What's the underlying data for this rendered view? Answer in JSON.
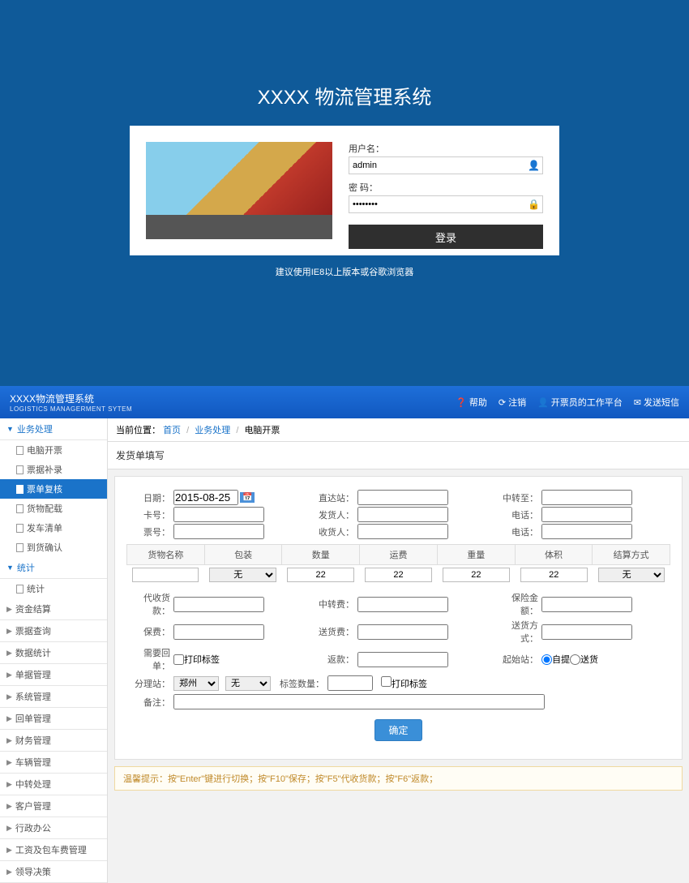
{
  "login": {
    "title": "XXXX 物流管理系统",
    "user_label": "用户名：",
    "user_value": "admin",
    "pwd_label": "密 码：",
    "pwd_value": "••••••••",
    "btn": "登录",
    "tip": "建议使用IE8以上版本或谷歌浏览器"
  },
  "header": {
    "logo": "XXXX物流管理系统",
    "logo_sub": "LOGISTICS MANAGERMENT SYTEM",
    "links": {
      "help": "帮助",
      "logout": "注销",
      "workbench": "开票员的工作平台",
      "sms": "发送短信"
    }
  },
  "sidebar": {
    "groups": [
      {
        "label": "业务处理",
        "open": true,
        "subs": [
          {
            "label": "电脑开票"
          },
          {
            "label": "票据补录"
          },
          {
            "label": "票单复核",
            "active": true
          },
          {
            "label": "货物配载"
          },
          {
            "label": "发车清单"
          },
          {
            "label": "到货确认"
          }
        ]
      },
      {
        "label": "统计",
        "open": true,
        "subs": [
          {
            "label": "统计"
          }
        ]
      },
      {
        "label": "资金结算"
      },
      {
        "label": "票据查询"
      },
      {
        "label": "数据统计"
      },
      {
        "label": "单据管理"
      },
      {
        "label": "系统管理"
      },
      {
        "label": "回单管理"
      },
      {
        "label": "财务管理"
      },
      {
        "label": "车辆管理"
      },
      {
        "label": "中转处理"
      },
      {
        "label": "客户管理"
      },
      {
        "label": "行政办公"
      },
      {
        "label": "工资及包车费管理"
      },
      {
        "label": "领导决策"
      }
    ]
  },
  "breadcrumb": {
    "pre": "当前位置：",
    "home": "首页",
    "cat": "业务处理",
    "page": "电脑开票"
  },
  "section": "发货单填写",
  "form": {
    "r1": {
      "date_l": "日期：",
      "date_v": "2015-08-25",
      "direct_l": "直达站：",
      "transfer_l": "中转至："
    },
    "r2": {
      "card_l": "卡号：",
      "sender_l": "发货人：",
      "phone_l": "电话："
    },
    "r3": {
      "ticket_l": "票号：",
      "receiver_l": "收货人：",
      "phone_l": "电话："
    },
    "cols": [
      "货物名称",
      "包装",
      "数量",
      "运费",
      "重量",
      "体积",
      "结算方式"
    ],
    "vals": {
      "pack": "无",
      "qty": "22",
      "fee": "22",
      "weight": "22",
      "vol": "22",
      "settle": "无"
    },
    "g": {
      "collect_l": "代收货款：",
      "transfee_l": "中转费：",
      "insure_amt_l": "保险金额：",
      "insure_l": "保费：",
      "deliverfee_l": "送货费：",
      "delivermode_l": "送货方式：",
      "receipt_l": "需要回单：",
      "receipt_chk": "打印标签",
      "rebate_l": "返款：",
      "origin_l": "起始站：",
      "origin_opt1": "自提",
      "origin_opt2": "送货",
      "branch_l": "分理站：",
      "branch_v": "郑州",
      "branch_s": "无",
      "tagqty_l": "标签数量：",
      "tag_chk": "打印标签",
      "remark_l": "备注："
    },
    "submit": "确定"
  },
  "hint": "温馨提示：按\"Enter\"键进行切换；按\"F10\"保存；按\"F5\"代收货款；按\"F6\"返款；"
}
